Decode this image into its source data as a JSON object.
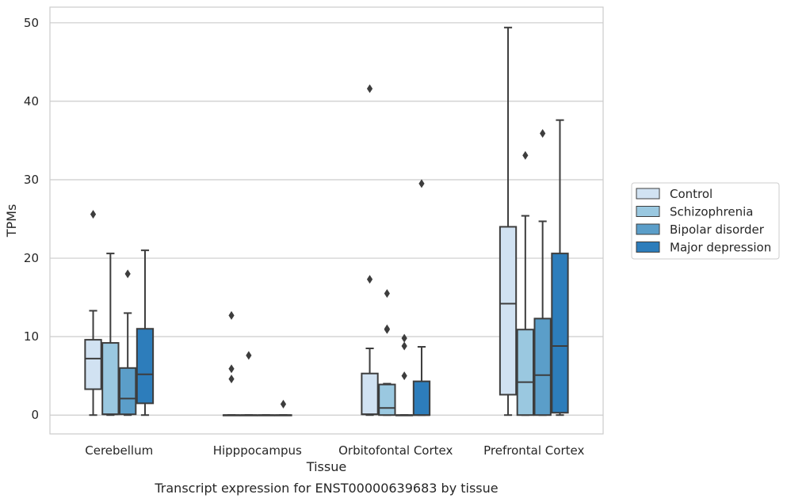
{
  "chart_data": {
    "type": "box",
    "title": "",
    "caption": "Transcript expression for ENST00000639683 by tissue",
    "xlabel": "Tissue",
    "ylabel": "TPMs",
    "ylim": [
      -2.4,
      52
    ],
    "yticks": [
      0,
      10,
      20,
      30,
      40,
      50
    ],
    "grid": true,
    "legend_position": "right",
    "categories": [
      "Cerebellum",
      "Hipppocampus",
      "Orbitofontal Cortex",
      "Prefrontal Cortex"
    ],
    "series": [
      {
        "name": "Control",
        "color": "#d1e2f2",
        "boxes": [
          {
            "whislo": 0,
            "q1": 3.3,
            "med": 7.2,
            "q3": 9.6,
            "whishi": 13.3,
            "fliers": [
              25.6
            ]
          },
          {
            "whislo": 0,
            "q1": 0,
            "med": 0,
            "q3": 0,
            "whishi": 0,
            "fliers": [
              12.7,
              5.9,
              4.6
            ]
          },
          {
            "whislo": 0,
            "q1": 0.1,
            "med": 0.1,
            "q3": 5.3,
            "whishi": 8.5,
            "fliers": [
              41.6,
              17.3
            ]
          },
          {
            "whislo": 0,
            "q1": 2.6,
            "med": 14.2,
            "q3": 24.0,
            "whishi": 49.4,
            "fliers": []
          }
        ]
      },
      {
        "name": "Schizophrenia",
        "color": "#9ac8e0",
        "boxes": [
          {
            "whislo": 0,
            "q1": 0.1,
            "med": 0.1,
            "q3": 9.2,
            "whishi": 20.6,
            "fliers": []
          },
          {
            "whislo": 0,
            "q1": 0,
            "med": 0,
            "q3": 0,
            "whishi": 0,
            "fliers": [
              7.6
            ]
          },
          {
            "whislo": 0,
            "q1": 0,
            "med": 0.9,
            "q3": 3.9,
            "whishi": 4.0,
            "fliers": [
              15.5,
              11.0,
              10.9
            ]
          },
          {
            "whislo": 0,
            "q1": 0,
            "med": 4.2,
            "q3": 10.9,
            "whishi": 25.4,
            "fliers": [
              33.1
            ]
          }
        ]
      },
      {
        "name": "Bipolar disorder",
        "color": "#5b9ec9",
        "boxes": [
          {
            "whislo": 0,
            "q1": 0.1,
            "med": 2.1,
            "q3": 6.0,
            "whishi": 13.0,
            "fliers": [
              18.0
            ]
          },
          {
            "whislo": 0,
            "q1": 0,
            "med": 0,
            "q3": 0,
            "whishi": 0,
            "fliers": []
          },
          {
            "whislo": 0,
            "q1": 0,
            "med": 0,
            "q3": 0,
            "whishi": 0,
            "fliers": [
              9.8,
              8.8,
              5.0
            ]
          },
          {
            "whislo": 0,
            "q1": 0,
            "med": 5.1,
            "q3": 12.3,
            "whishi": 24.7,
            "fliers": [
              35.9
            ]
          }
        ]
      },
      {
        "name": "Major depression",
        "color": "#2d7dbb",
        "boxes": [
          {
            "whislo": 0,
            "q1": 1.5,
            "med": 5.2,
            "q3": 11.0,
            "whishi": 21.0,
            "fliers": []
          },
          {
            "whislo": 0,
            "q1": 0,
            "med": 0,
            "q3": 0,
            "whishi": 0,
            "fliers": [
              1.4
            ]
          },
          {
            "whislo": 0,
            "q1": 0,
            "med": 0,
            "q3": 4.3,
            "whishi": 8.7,
            "fliers": [
              29.5
            ]
          },
          {
            "whislo": 0,
            "q1": 0.3,
            "med": 8.8,
            "q3": 20.6,
            "whishi": 37.6,
            "fliers": []
          }
        ]
      }
    ]
  }
}
